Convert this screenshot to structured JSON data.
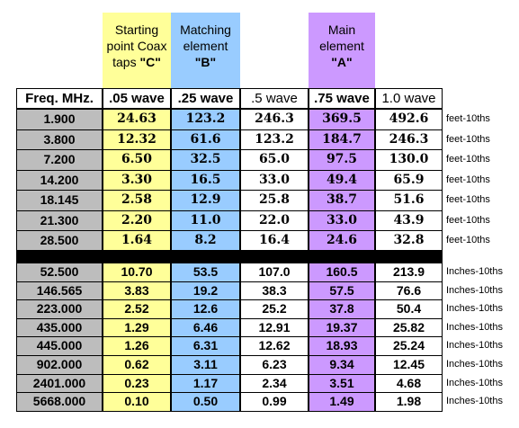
{
  "headers": {
    "c": [
      "Starting",
      "point Coax",
      "taps ",
      "\"C\""
    ],
    "b": [
      "Matching",
      "element",
      "\"B\""
    ],
    "a": [
      "Main",
      "element",
      "\"A\""
    ]
  },
  "columns": [
    "Freq. MHz.",
    ".05 wave",
    ".25 wave",
    ".5 wave",
    ".75 wave",
    "1.0 wave"
  ],
  "colors": {
    "gray": "#bdbdbd",
    "yellow": "#ffff99",
    "blue": "#99ccff",
    "purple": "#cc99ff"
  },
  "units": {
    "feet": "feet-10ths",
    "inches": "Inches-10ths"
  },
  "rows_feet": [
    [
      "1.900",
      "24.63",
      "123.2",
      "246.3",
      "369.5",
      "492.6"
    ],
    [
      "3.800",
      "12.32",
      "61.6",
      "123.2",
      "184.7",
      "246.3"
    ],
    [
      "7.200",
      "6.50",
      "32.5",
      "65.0",
      "97.5",
      "130.0"
    ],
    [
      "14.200",
      "3.30",
      "16.5",
      "33.0",
      "49.4",
      "65.9"
    ],
    [
      "18.145",
      "2.58",
      "12.9",
      "25.8",
      "38.7",
      "51.6"
    ],
    [
      "21.300",
      "2.20",
      "11.0",
      "22.0",
      "33.0",
      "43.9"
    ],
    [
      "28.500",
      "1.64",
      "8.2",
      "16.4",
      "24.6",
      "32.8"
    ]
  ],
  "rows_inches": [
    [
      "52.500",
      "10.70",
      "53.5",
      "107.0",
      "160.5",
      "213.9"
    ],
    [
      "146.565",
      "3.83",
      "19.2",
      "38.3",
      "57.5",
      "76.6"
    ],
    [
      "223.000",
      "2.52",
      "12.6",
      "25.2",
      "37.8",
      "50.4"
    ],
    [
      "435.000",
      "1.29",
      "6.46",
      "12.91",
      "19.37",
      "25.82"
    ],
    [
      "445.000",
      "1.26",
      "6.31",
      "12.62",
      "18.93",
      "25.24"
    ],
    [
      "902.000",
      "0.62",
      "3.11",
      "6.23",
      "9.34",
      "12.45"
    ],
    [
      "2401.000",
      "0.23",
      "1.17",
      "2.34",
      "3.51",
      "4.68"
    ],
    [
      "5668.000",
      "0.10",
      "0.50",
      "0.99",
      "1.49",
      "1.98"
    ]
  ]
}
